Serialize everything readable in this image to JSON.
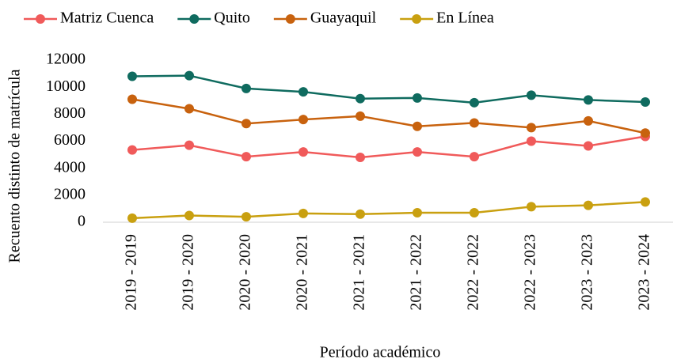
{
  "chart_data": {
    "type": "line",
    "x_label": "Período académico",
    "y_label": "Recuento distinto de matrícula",
    "categories": [
      "2019 - 2019",
      "2019 - 2020",
      "2020 - 2020",
      "2020 - 2021",
      "2021 - 2021",
      "2021 - 2022",
      "2022 - 2022",
      "2022 - 2023",
      "2023 - 2023",
      "2023 - 2024"
    ],
    "series": [
      {
        "name": "Matriz Cuenca",
        "color": "#f05a5a",
        "values": [
          5350,
          5700,
          4850,
          5200,
          4800,
          5200,
          4850,
          6000,
          5650,
          6350
        ]
      },
      {
        "name": "Quito",
        "color": "#0f6b5f",
        "values": [
          10800,
          10850,
          9900,
          9650,
          9150,
          9200,
          8850,
          9400,
          9050,
          8900
        ]
      },
      {
        "name": "Guayaquil",
        "color": "#c8620e",
        "values": [
          9100,
          8400,
          7300,
          7600,
          7850,
          7100,
          7350,
          7000,
          7500,
          6600
        ]
      },
      {
        "name": "En Línea",
        "color": "#c9a010",
        "values": [
          300,
          500,
          400,
          650,
          600,
          700,
          700,
          1150,
          1250,
          1500
        ]
      }
    ],
    "ylim": [
      0,
      12000
    ],
    "yticks": [
      0,
      2000,
      4000,
      6000,
      8000,
      10000,
      12000
    ],
    "grid": false,
    "legend": "top"
  }
}
